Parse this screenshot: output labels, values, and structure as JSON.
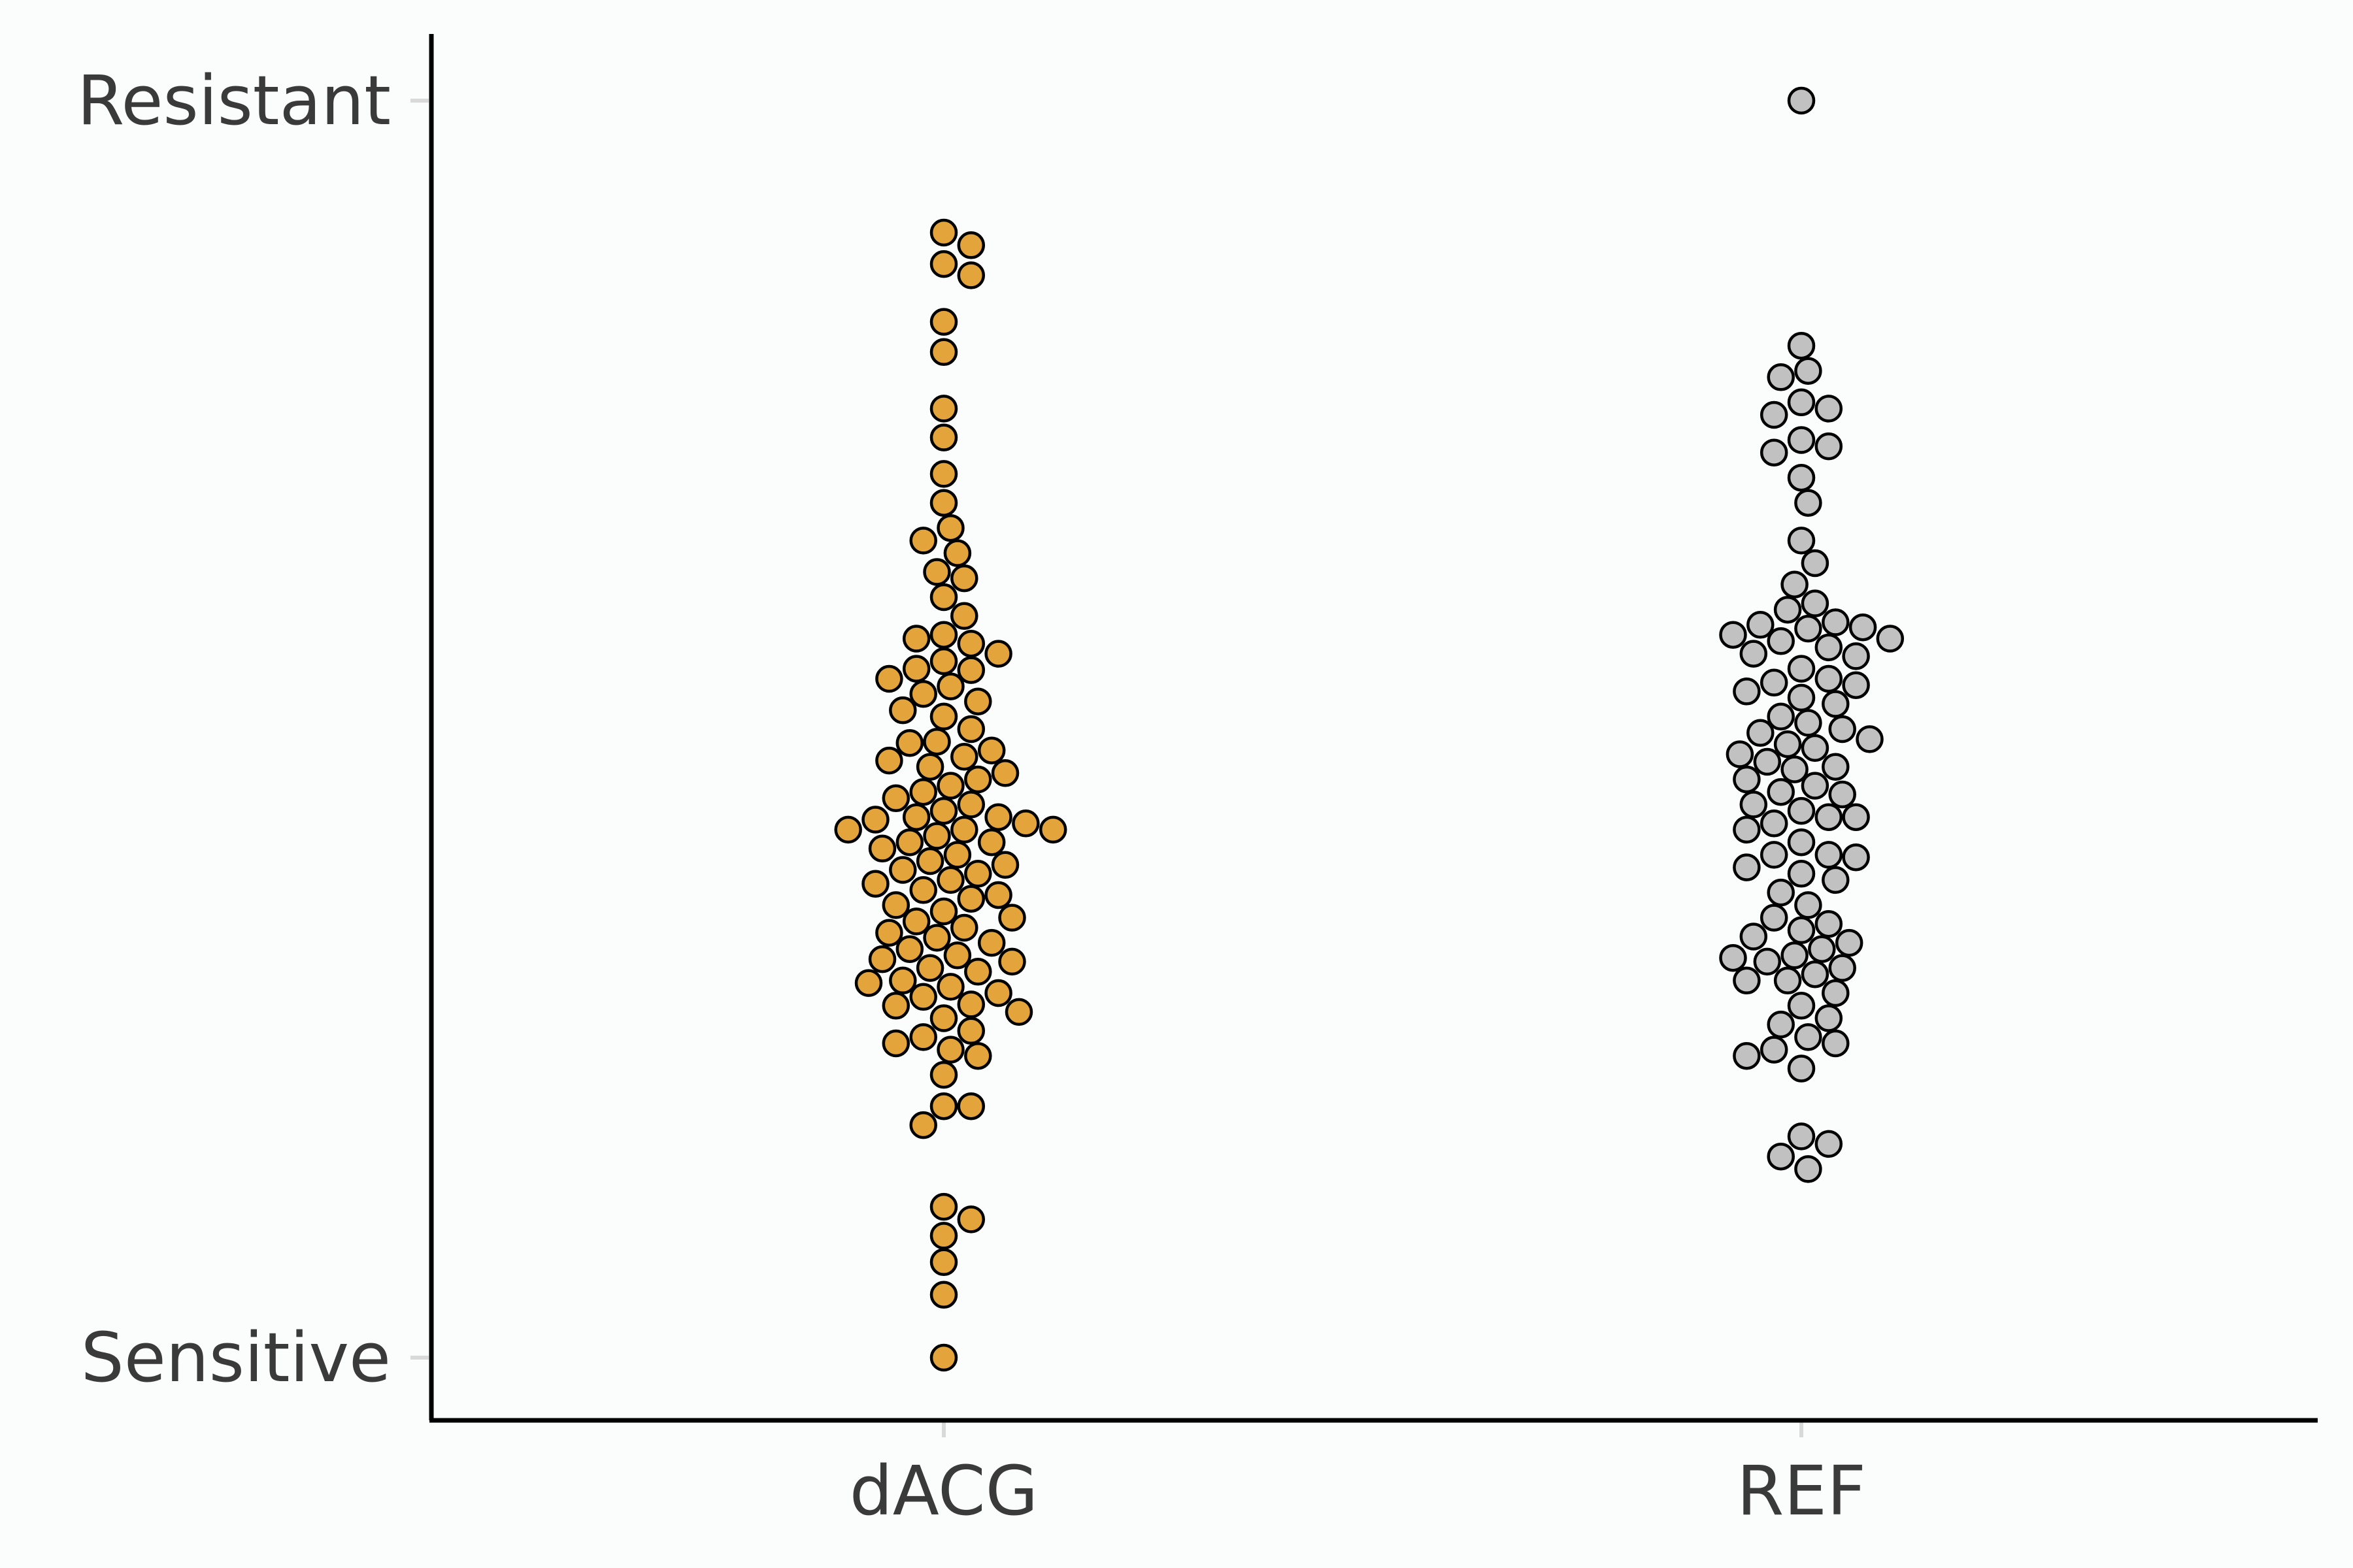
{
  "chart_data": {
    "type": "scatter",
    "subtype": "beeswarm",
    "title": "",
    "xlabel": "",
    "ylabel": "",
    "categories": [
      "dACG",
      "REF"
    ],
    "y_tick_labels": [
      "Sensitive",
      "Resistant"
    ],
    "ylim": [
      0,
      1
    ],
    "grid": false,
    "legend": "none",
    "series": [
      {
        "category": "dACG",
        "color": "#E3A43B",
        "values": [
          0.895,
          0.885,
          0.87,
          0.861,
          0.824,
          0.8,
          0.755,
          0.732,
          0.703,
          0.68,
          0.66,
          0.65,
          0.64,
          0.625,
          0.62,
          0.605,
          0.59,
          0.575,
          0.572,
          0.568,
          0.56,
          0.554,
          0.548,
          0.547,
          0.54,
          0.534,
          0.528,
          0.522,
          0.515,
          0.51,
          0.5,
          0.49,
          0.489,
          0.483,
          0.478,
          0.475,
          0.47,
          0.465,
          0.46,
          0.455,
          0.45,
          0.445,
          0.44,
          0.435,
          0.43,
          0.425,
          0.42,
          0.415,
          0.41,
          0.42,
          0.43,
          0.428,
          0.42,
          0.41,
          0.405,
          0.4,
          0.395,
          0.392,
          0.388,
          0.385,
          0.38,
          0.377,
          0.372,
          0.368,
          0.365,
          0.36,
          0.355,
          0.35,
          0.347,
          0.342,
          0.338,
          0.334,
          0.33,
          0.325,
          0.32,
          0.317,
          0.315,
          0.31,
          0.307,
          0.3,
          0.298,
          0.295,
          0.29,
          0.287,
          0.281,
          0.28,
          0.275,
          0.27,
          0.26,
          0.255,
          0.25,
          0.245,
          0.24,
          0.225,
          0.2,
          0.2,
          0.185,
          0.12,
          0.11,
          0.097,
          0.076,
          0.05,
          0.0
        ]
      },
      {
        "category": "REF",
        "color": "#C1C1C1",
        "values": [
          1.0,
          0.805,
          0.785,
          0.78,
          0.76,
          0.755,
          0.75,
          0.73,
          0.725,
          0.72,
          0.7,
          0.68,
          0.65,
          0.632,
          0.615,
          0.6,
          0.595,
          0.585,
          0.583,
          0.581,
          0.58,
          0.575,
          0.572,
          0.57,
          0.565,
          0.56,
          0.558,
          0.548,
          0.54,
          0.537,
          0.535,
          0.53,
          0.525,
          0.52,
          0.51,
          0.505,
          0.5,
          0.497,
          0.492,
          0.488,
          0.485,
          0.48,
          0.474,
          0.47,
          0.468,
          0.46,
          0.455,
          0.45,
          0.448,
          0.44,
          0.435,
          0.43,
          0.43,
          0.425,
          0.42,
          0.41,
          0.4,
          0.4,
          0.398,
          0.39,
          0.385,
          0.38,
          0.37,
          0.36,
          0.35,
          0.345,
          0.34,
          0.335,
          0.33,
          0.325,
          0.32,
          0.318,
          0.315,
          0.31,
          0.305,
          0.3,
          0.3,
          0.29,
          0.28,
          0.27,
          0.265,
          0.255,
          0.25,
          0.245,
          0.24,
          0.23,
          0.176,
          0.17,
          0.16,
          0.15
        ]
      }
    ]
  }
}
